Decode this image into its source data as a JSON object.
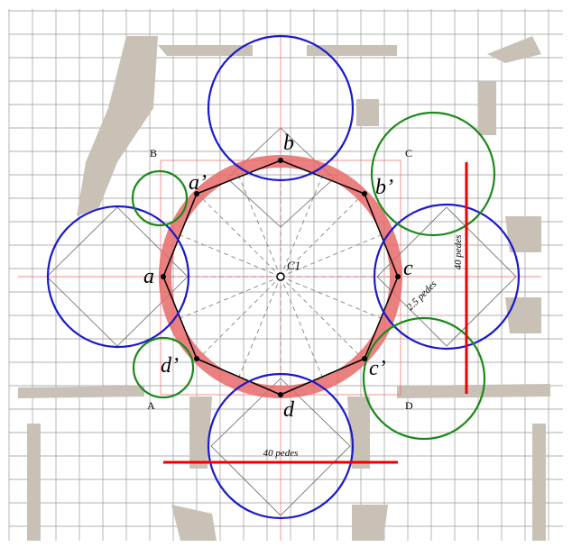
{
  "corners": {
    "A": "A",
    "B": "B",
    "C": "C",
    "D": "D"
  },
  "points": {
    "a": "a",
    "a_prime": "a’",
    "b": "b",
    "b_prime": "b’",
    "c": "c",
    "c_prime": "c’",
    "d": "d",
    "d_prime": "d’"
  },
  "center": "C1",
  "dimensions": {
    "offset": "2.5 pedes",
    "height": "40 pedes",
    "width": "40 pedes"
  }
}
